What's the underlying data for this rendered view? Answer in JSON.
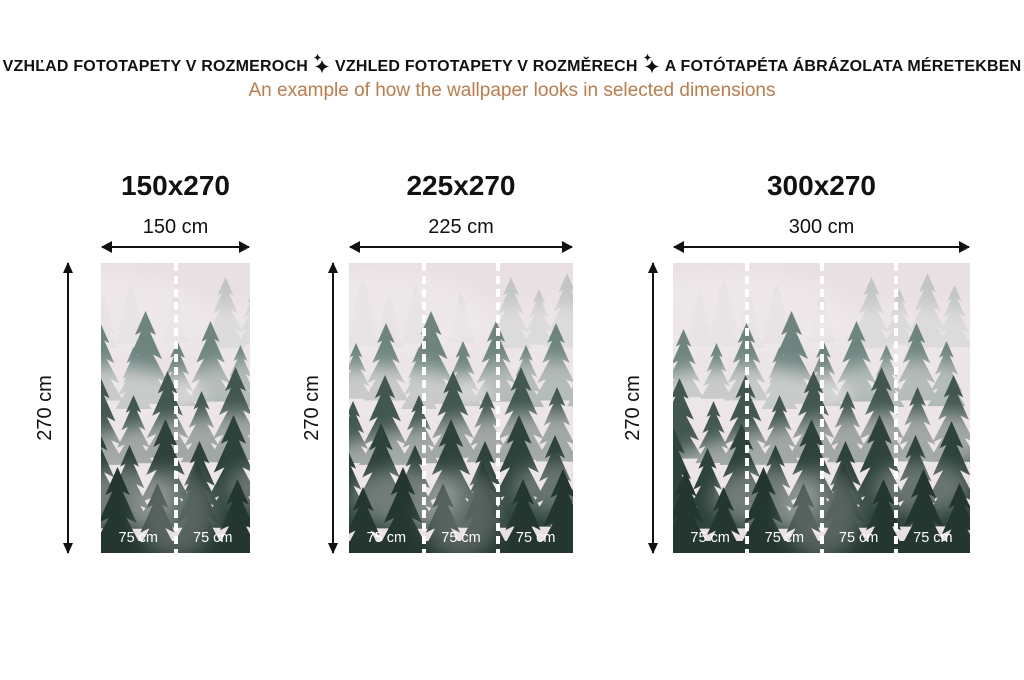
{
  "header": {
    "title_parts": [
      "VZHĽAD FOTOTAPETY V ROZMEROCH",
      "VZHLED FOTOTAPETY V ROZMĚRECH",
      "A FOTÓTAPÉTA ÁBRÁZOLATA MÉRETEKBEN"
    ],
    "separator_icon": "sparkle-icon",
    "subtitle": "An example of how the wallpaper looks in selected dimensions"
  },
  "panels": [
    {
      "size_label": "150x270",
      "width_label": "150 cm",
      "height_label": "270 cm",
      "segment_labels": [
        "75 cm",
        "75 cm"
      ]
    },
    {
      "size_label": "225x270",
      "width_label": "225 cm",
      "height_label": "270 cm",
      "segment_labels": [
        "75 cm",
        "75 cm",
        "75 cm"
      ]
    },
    {
      "size_label": "300x270",
      "width_label": "300 cm",
      "height_label": "270 cm",
      "segment_labels": [
        "75 cm",
        "75 cm",
        "75 cm",
        "75 cm"
      ]
    }
  ],
  "image": {
    "name": "misty-forest-wallpaper",
    "description": "Foggy coniferous forest photo shown cropped at three wallpaper widths"
  },
  "colors": {
    "ink": "#111111",
    "accent": "#c07b48",
    "segment-label": "#ffffff",
    "sky": "#e9e0e4",
    "far-trees": "#a8b5ae",
    "mid-trees": "#6e857f",
    "dark-trees": "#41574f",
    "fg-trees": "#2d423b",
    "front-trees": "#233630",
    "fog": "#efe9eb"
  }
}
